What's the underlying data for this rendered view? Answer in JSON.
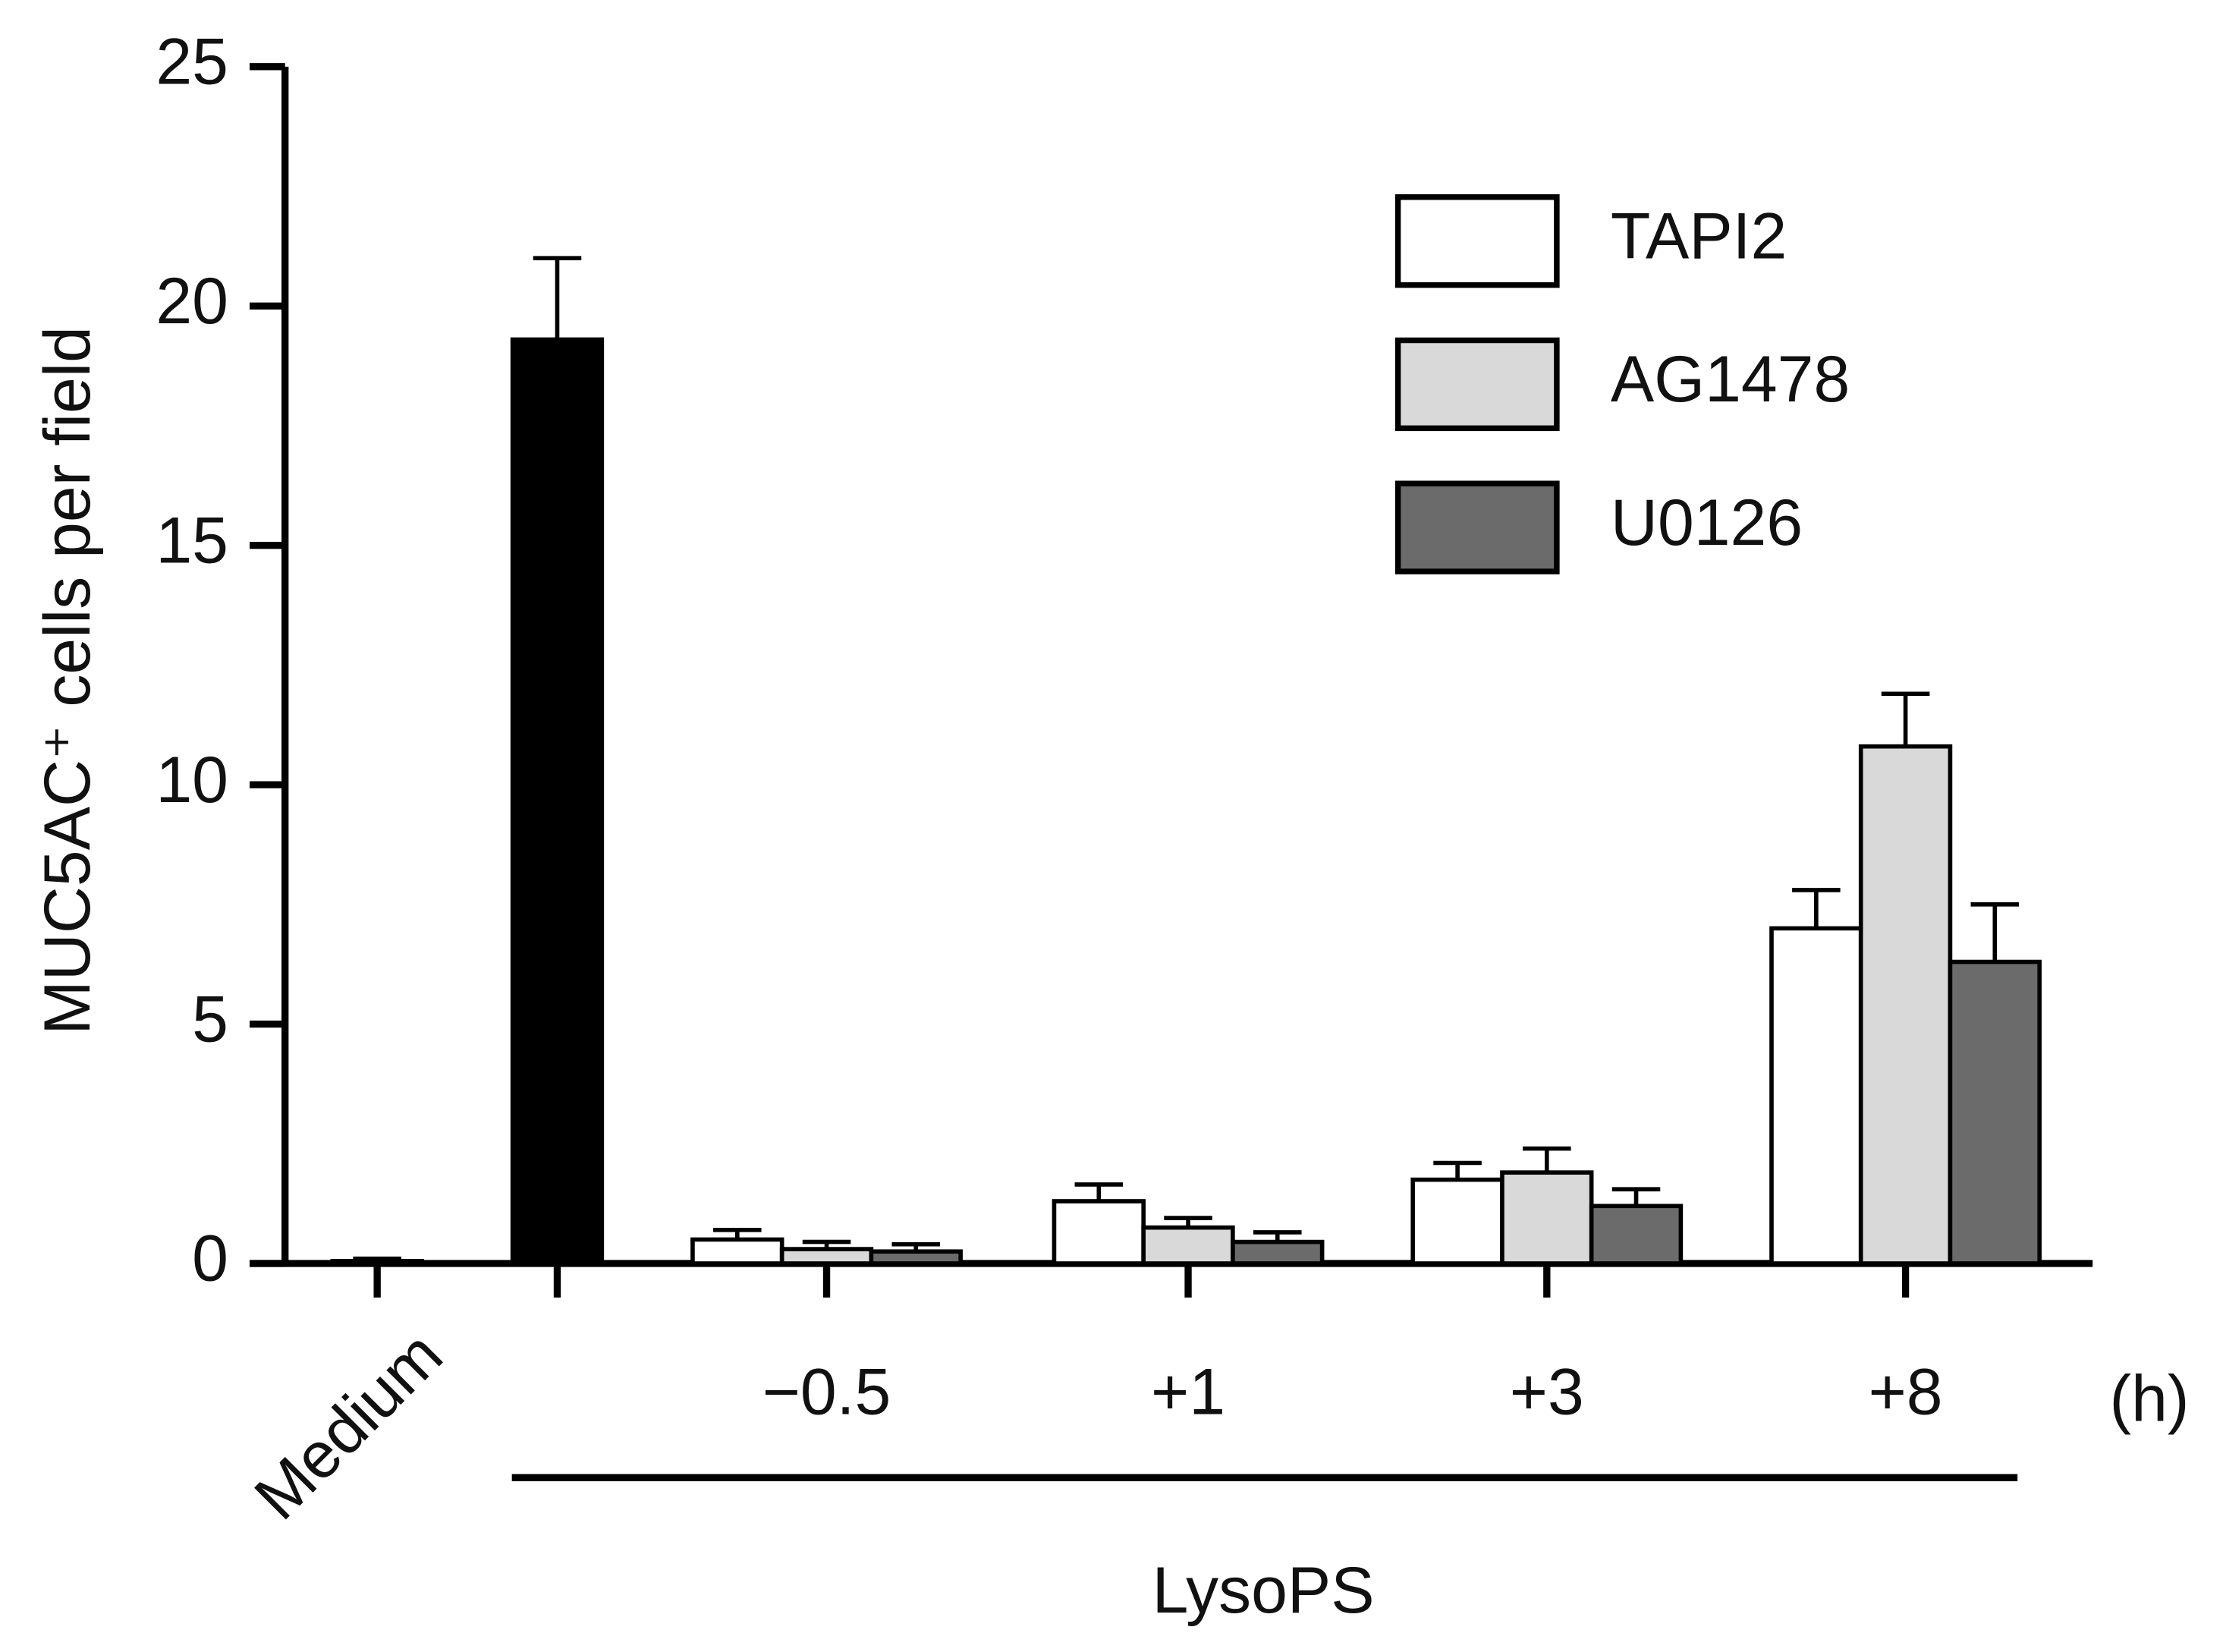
{
  "chart_data": {
    "type": "bar",
    "ylabel": "MUC5AC⁺ cells per field",
    "categories": [
      "Medium",
      null,
      "−0.5",
      "+1",
      "+3",
      "+8"
    ],
    "x_unit": "(h)",
    "group_label": "LysoPS",
    "values": [
      0.05,
      19.3,
      null,
      null,
      null,
      null
    ],
    "errors": [
      0.05,
      1.7,
      null,
      null,
      null,
      null
    ],
    "color": "#000000",
    "series": [
      {
        "name": "TAPI2",
        "color": "#ffffff",
        "values": [
          null,
          null,
          0.5,
          1.3,
          1.75,
          7.0
        ],
        "errors": [
          null,
          null,
          0.2,
          0.35,
          0.35,
          0.8
        ]
      },
      {
        "name": "AG1478",
        "color": "#d9d9d9",
        "values": [
          null,
          null,
          0.3,
          0.75,
          1.9,
          10.8
        ],
        "errors": [
          null,
          null,
          0.15,
          0.2,
          0.5,
          1.1
        ]
      },
      {
        "name": "U0126",
        "color": "#6b6b6b",
        "values": [
          null,
          null,
          0.25,
          0.45,
          1.2,
          6.3
        ],
        "errors": [
          null,
          null,
          0.15,
          0.2,
          0.35,
          1.2
        ]
      }
    ],
    "ylim": [
      0,
      25
    ],
    "yticks": [
      0,
      5,
      10,
      15,
      20,
      25
    ],
    "grid": false
  }
}
